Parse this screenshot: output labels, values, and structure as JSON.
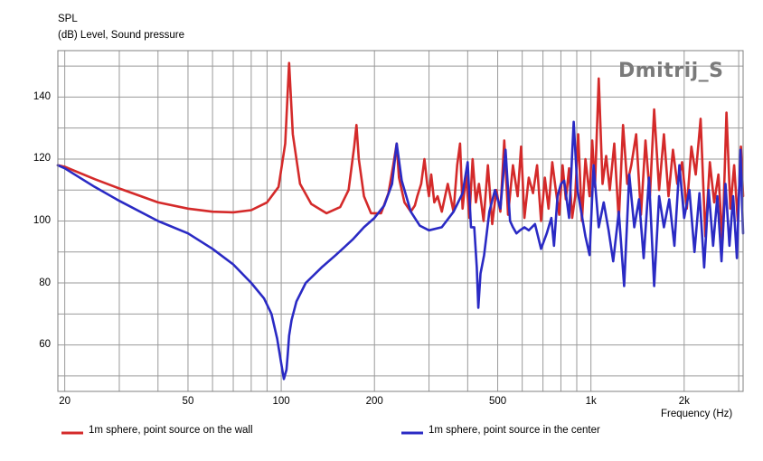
{
  "chart_data": {
    "type": "line",
    "ylabel_top": "SPL",
    "ylabel_sub": "(dB)  Level, Sound pressure",
    "xlabel": "Frequency  (Hz)",
    "xscale": "log",
    "xlim": [
      19,
      3100
    ],
    "ylim": [
      45,
      155
    ],
    "grid": true,
    "watermark": "Dmitrij_S",
    "y_ticks": [
      60,
      80,
      100,
      120,
      140
    ],
    "x_tick_labels": [
      {
        "value": 20,
        "label": "20"
      },
      {
        "value": 50,
        "label": "50"
      },
      {
        "value": 100,
        "label": "100"
      },
      {
        "value": 200,
        "label": "200"
      },
      {
        "value": 500,
        "label": "500"
      },
      {
        "value": 1000,
        "label": "1k"
      },
      {
        "value": 2000,
        "label": "2k"
      }
    ],
    "series": [
      {
        "name": "1m sphere, point source on the wall",
        "color": "#d42a2a",
        "x": [
          19,
          20,
          25,
          30,
          40,
          50,
          60,
          70,
          80,
          90,
          98,
          103,
          106,
          109,
          115,
          125,
          140,
          155,
          165,
          172,
          175,
          178,
          185,
          195,
          210,
          222,
          230,
          236,
          240,
          250,
          262,
          270,
          275,
          283,
          290,
          296,
          300,
          305,
          312,
          320,
          330,
          345,
          360,
          370,
          378,
          385,
          395,
          405,
          415,
          425,
          435,
          450,
          465,
          480,
          495,
          510,
          525,
          540,
          560,
          580,
          595,
          610,
          630,
          650,
          670,
          690,
          710,
          730,
          750,
          770,
          790,
          810,
          830,
          850,
          870,
          890,
          910,
          935,
          960,
          990,
          1010,
          1030,
          1060,
          1090,
          1120,
          1150,
          1190,
          1230,
          1270,
          1310,
          1350,
          1400,
          1450,
          1500,
          1550,
          1600,
          1660,
          1720,
          1780,
          1840,
          1900,
          1970,
          2040,
          2110,
          2180,
          2260,
          2340,
          2420,
          2500,
          2580,
          2660,
          2740,
          2820,
          2900,
          2980,
          3050,
          3100
        ],
        "y": [
          118,
          117.5,
          113.5,
          110.5,
          106,
          104,
          103,
          102.8,
          103.5,
          106,
          111,
          125,
          151,
          128,
          112,
          105.5,
          102.5,
          104.5,
          110,
          124,
          131,
          120,
          108,
          102.5,
          102.5,
          109,
          118,
          125,
          114,
          106,
          103,
          105,
          108,
          112,
          120,
          112,
          108,
          115,
          106,
          108,
          103,
          112,
          103,
          118,
          125,
          104,
          115,
          101,
          120,
          106,
          112,
          100,
          118,
          99,
          110,
          103,
          126,
          102,
          118,
          108,
          124,
          101,
          114,
          109,
          118,
          100,
          114,
          104,
          119,
          110,
          102,
          118,
          107,
          117,
          101,
          108,
          128,
          100,
          120,
          108,
          126,
          111,
          146,
          112,
          121,
          110,
          125,
          100,
          131,
          112,
          118,
          128,
          102,
          126,
          108,
          136,
          110,
          128,
          108,
          123,
          112,
          119,
          104,
          124,
          115,
          133,
          95,
          119,
          106,
          115,
          93,
          135,
          104,
          118,
          100,
          124,
          108
        ]
      },
      {
        "name": "1m sphere, point source in the center",
        "color": "#2a2ac4",
        "x": [
          19,
          20,
          25,
          30,
          40,
          50,
          60,
          70,
          80,
          88,
          93,
          97,
          100,
          102,
          104,
          105,
          106,
          108,
          112,
          120,
          135,
          150,
          170,
          185,
          200,
          215,
          228,
          236,
          245,
          262,
          280,
          300,
          330,
          360,
          385,
          400,
          410,
          420,
          428,
          433,
          440,
          452,
          470,
          490,
          510,
          530,
          548,
          560,
          575,
          590,
          610,
          630,
          660,
          690,
          720,
          745,
          760,
          780,
          800,
          820,
          850,
          880,
          905,
          930,
          960,
          990,
          1020,
          1060,
          1100,
          1140,
          1180,
          1230,
          1280,
          1330,
          1380,
          1430,
          1480,
          1540,
          1600,
          1660,
          1720,
          1790,
          1860,
          1930,
          2000,
          2080,
          2160,
          2240,
          2320,
          2400,
          2480,
          2560,
          2640,
          2720,
          2800,
          2880,
          2960,
          3040,
          3100
        ],
        "y": [
          118,
          117,
          111,
          106.5,
          100,
          96,
          91,
          86,
          80,
          75,
          70,
          62,
          54,
          49,
          52,
          57,
          63,
          68,
          74,
          80,
          85,
          89,
          94,
          98,
          101,
          105,
          112,
          125,
          113,
          103,
          98.5,
          97,
          98,
          103,
          109,
          119,
          98,
          98,
          85,
          72,
          83,
          89,
          103,
          110,
          104,
          123,
          100,
          98,
          96,
          97,
          98,
          97,
          99,
          91,
          96,
          101,
          92,
          108,
          112,
          113,
          101,
          132,
          110,
          103,
          95,
          89,
          118,
          98,
          106,
          97,
          87,
          103,
          79,
          115,
          98,
          107,
          88,
          114,
          79,
          108,
          98,
          107,
          92,
          118,
          101,
          110,
          90,
          109,
          85,
          110,
          92,
          108,
          87,
          112,
          92,
          108,
          88,
          123,
          96
        ]
      }
    ]
  }
}
